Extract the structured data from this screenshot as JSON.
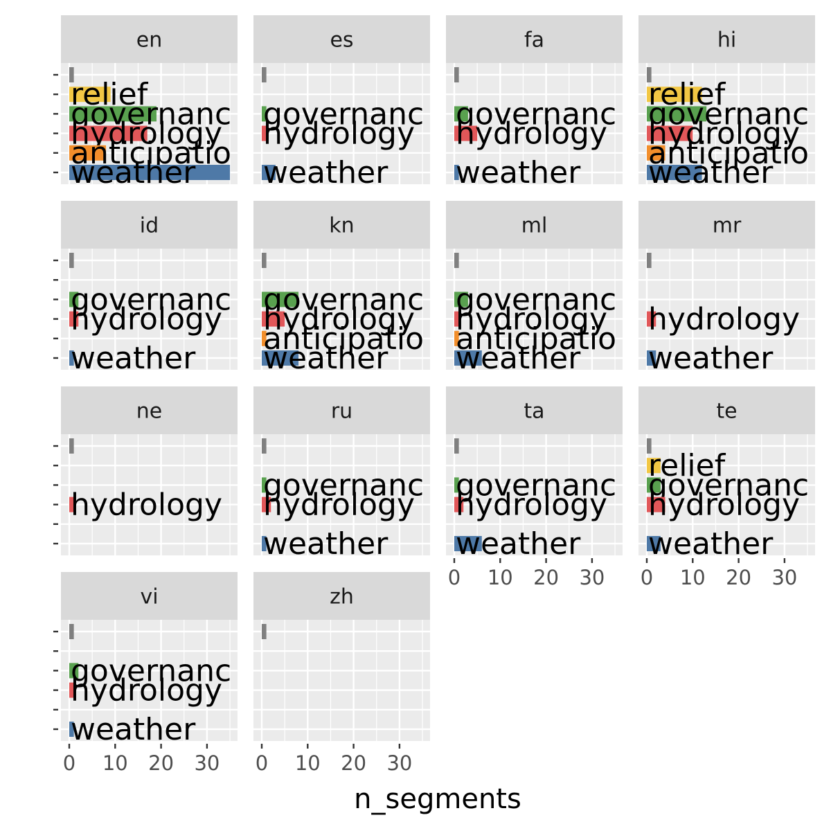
{
  "chart_data": {
    "type": "bar",
    "orientation": "horizontal",
    "facet_by": "language",
    "xlabel": "n_segments",
    "ylabel": "",
    "xlim": [
      0,
      36
    ],
    "x_ticks": [
      0,
      10,
      20,
      30
    ],
    "grid": true,
    "categories": [
      "",
      "relief",
      "governance",
      "hydrology",
      "anticipation",
      "weather"
    ],
    "category_colors": {
      "": "#808080",
      "relief": "#f2c744",
      "governance": "#59a14f",
      "hydrology": "#e15759",
      "anticipation": "#f28e2b",
      "weather": "#4e79a7"
    },
    "panels": [
      {
        "name": "en",
        "bars": [
          {
            "category": "",
            "label": "",
            "value": 1
          },
          {
            "category": "relief",
            "label": "relief",
            "value": 9
          },
          {
            "category": "governance",
            "label": "governanc",
            "value": 19
          },
          {
            "category": "hydrology",
            "label": "hydrology",
            "value": 17
          },
          {
            "category": "anticipation",
            "label": "anticipatio",
            "value": 8
          },
          {
            "category": "weather",
            "label": "weather",
            "value": 35
          }
        ]
      },
      {
        "name": "es",
        "bars": [
          {
            "category": "",
            "label": "",
            "value": 1
          },
          {
            "category": "governance",
            "label": "governanc",
            "value": 1
          },
          {
            "category": "hydrology",
            "label": "hydrology",
            "value": 1
          },
          {
            "category": "weather",
            "label": "weather",
            "value": 3
          }
        ]
      },
      {
        "name": "fa",
        "bars": [
          {
            "category": "",
            "label": "",
            "value": 1
          },
          {
            "category": "governance",
            "label": "governanc",
            "value": 3
          },
          {
            "category": "hydrology",
            "label": "hydrology",
            "value": 5
          },
          {
            "category": "weather",
            "label": "weather",
            "value": 1
          }
        ]
      },
      {
        "name": "hi",
        "bars": [
          {
            "category": "",
            "label": "",
            "value": 1
          },
          {
            "category": "relief",
            "label": "relief",
            "value": 12
          },
          {
            "category": "governance",
            "label": "governanc",
            "value": 13
          },
          {
            "category": "hydrology",
            "label": "hydrology",
            "value": 10
          },
          {
            "category": "anticipation",
            "label": "anticipatio",
            "value": 4
          },
          {
            "category": "weather",
            "label": "weather",
            "value": 12
          }
        ]
      },
      {
        "name": "id",
        "bars": [
          {
            "category": "",
            "label": "",
            "value": 1
          },
          {
            "category": "governance",
            "label": "governanc",
            "value": 2
          },
          {
            "category": "hydrology",
            "label": "hydrology",
            "value": 2
          },
          {
            "category": "weather",
            "label": "weather",
            "value": 1
          }
        ]
      },
      {
        "name": "kn",
        "bars": [
          {
            "category": "",
            "label": "",
            "value": 1
          },
          {
            "category": "governance",
            "label": "governanc",
            "value": 8
          },
          {
            "category": "hydrology",
            "label": "hydrology",
            "value": 5
          },
          {
            "category": "anticipation",
            "label": "anticipatio",
            "value": 1
          },
          {
            "category": "weather",
            "label": "weather",
            "value": 8
          }
        ]
      },
      {
        "name": "ml",
        "bars": [
          {
            "category": "",
            "label": "",
            "value": 1
          },
          {
            "category": "governance",
            "label": "governanc",
            "value": 3
          },
          {
            "category": "hydrology",
            "label": "hydrology",
            "value": 1
          },
          {
            "category": "anticipation",
            "label": "anticipatio",
            "value": 1
          },
          {
            "category": "weather",
            "label": "weather",
            "value": 6
          }
        ]
      },
      {
        "name": "mr",
        "bars": [
          {
            "category": "",
            "label": "",
            "value": 1
          },
          {
            "category": "hydrology",
            "label": "hydrology",
            "value": 2
          },
          {
            "category": "weather",
            "label": "weather",
            "value": 2
          }
        ]
      },
      {
        "name": "ne",
        "bars": [
          {
            "category": "",
            "label": "",
            "value": 1
          },
          {
            "category": "hydrology",
            "label": "hydrology",
            "value": 1
          }
        ]
      },
      {
        "name": "ru",
        "bars": [
          {
            "category": "",
            "label": "",
            "value": 1
          },
          {
            "category": "governance",
            "label": "governanc",
            "value": 1
          },
          {
            "category": "hydrology",
            "label": "hydrology",
            "value": 2
          },
          {
            "category": "weather",
            "label": "weather",
            "value": 1
          }
        ]
      },
      {
        "name": "ta",
        "bars": [
          {
            "category": "",
            "label": "",
            "value": 1
          },
          {
            "category": "governance",
            "label": "governanc",
            "value": 1
          },
          {
            "category": "hydrology",
            "label": "hydrology",
            "value": 2
          },
          {
            "category": "weather",
            "label": "weather",
            "value": 6
          }
        ]
      },
      {
        "name": "te",
        "bars": [
          {
            "category": "",
            "label": "",
            "value": 1
          },
          {
            "category": "relief",
            "label": "relief",
            "value": 3
          },
          {
            "category": "governance",
            "label": "governanc",
            "value": 3
          },
          {
            "category": "hydrology",
            "label": "hydrology",
            "value": 4
          },
          {
            "category": "weather",
            "label": "weather",
            "value": 3
          }
        ]
      },
      {
        "name": "vi",
        "bars": [
          {
            "category": "",
            "label": "",
            "value": 1
          },
          {
            "category": "governance",
            "label": "governanc",
            "value": 2
          },
          {
            "category": "hydrology",
            "label": "hydrology",
            "value": 1
          },
          {
            "category": "weather",
            "label": "weather",
            "value": 1
          }
        ]
      },
      {
        "name": "zh",
        "bars": [
          {
            "category": "",
            "label": "",
            "value": 1
          }
        ]
      }
    ]
  }
}
